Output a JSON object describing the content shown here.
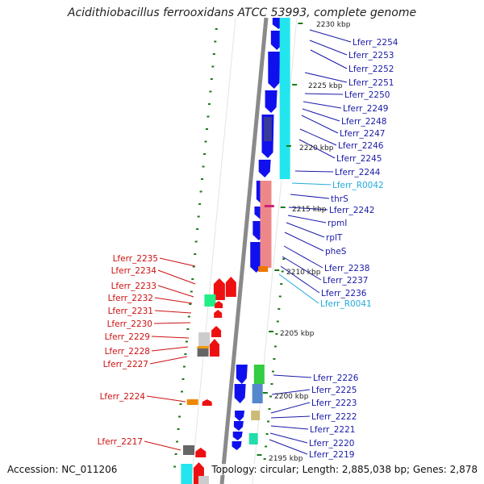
{
  "title": "Acidithiobacillus ferrooxidans ATCC 53993, complete genome",
  "footer": {
    "accession": "Accession: NC_011206",
    "summary": "Topology: circular; Length: 2,885,038 bp; Genes: 2,878"
  },
  "colors": {
    "cds_forward": "#1010ee",
    "cds_reverse": "#ee1010",
    "rna": "#22bbdd",
    "label_blue": "#1a1aa8",
    "label_red": "#cc1111",
    "label_cyan": "#22aadd",
    "backbone": "#888888",
    "tick": "#1a7a1a"
  },
  "scale": {
    "ticks": [
      {
        "label": "2225 kbp"
      },
      {
        "label": "2220 kbp"
      },
      {
        "label": "2215 kbp"
      },
      {
        "label": "2210 kbp"
      },
      {
        "label": "2205 kbp"
      },
      {
        "label": "2200 kbp"
      },
      {
        "label": "2195 kbp"
      },
      {
        "label": "2230 kbp"
      }
    ]
  },
  "genes_right": [
    {
      "name": "Lferr_2254",
      "kind": "cds"
    },
    {
      "name": "Lferr_2253",
      "kind": "cds"
    },
    {
      "name": "Lferr_2252",
      "kind": "cds"
    },
    {
      "name": "Lferr_2251",
      "kind": "cds"
    },
    {
      "name": "Lferr_2250",
      "kind": "cds"
    },
    {
      "name": "Lferr_2249",
      "kind": "cds"
    },
    {
      "name": "Lferr_2248",
      "kind": "cds"
    },
    {
      "name": "Lferr_2247",
      "kind": "cds"
    },
    {
      "name": "Lferr_2246",
      "kind": "cds"
    },
    {
      "name": "Lferr_2245",
      "kind": "cds"
    },
    {
      "name": "Lferr_2244",
      "kind": "cds"
    },
    {
      "name": "Lferr_R0042",
      "kind": "rna"
    },
    {
      "name": "thrS",
      "kind": "cds"
    },
    {
      "name": "Lferr_2242",
      "kind": "cds"
    },
    {
      "name": "rpmI",
      "kind": "cds"
    },
    {
      "name": "rplT",
      "kind": "cds"
    },
    {
      "name": "pheS",
      "kind": "cds"
    },
    {
      "name": "Lferr_2238",
      "kind": "cds"
    },
    {
      "name": "Lferr_2237",
      "kind": "cds"
    },
    {
      "name": "Lferr_2236",
      "kind": "cds"
    },
    {
      "name": "Lferr_R0041",
      "kind": "rna"
    },
    {
      "name": "Lferr_2226",
      "kind": "cds"
    },
    {
      "name": "Lferr_2225",
      "kind": "cds"
    },
    {
      "name": "Lferr_2223",
      "kind": "cds"
    },
    {
      "name": "Lferr_2222",
      "kind": "cds"
    },
    {
      "name": "Lferr_2221",
      "kind": "cds"
    },
    {
      "name": "Lferr_2220",
      "kind": "cds"
    },
    {
      "name": "Lferr_2219",
      "kind": "cds"
    }
  ],
  "genes_left": [
    {
      "name": "Lferr_2235"
    },
    {
      "name": "Lferr_2234"
    },
    {
      "name": "Lferr_2233"
    },
    {
      "name": "Lferr_2232"
    },
    {
      "name": "Lferr_2231"
    },
    {
      "name": "Lferr_2230"
    },
    {
      "name": "Lferr_2229"
    },
    {
      "name": "Lferr_2228"
    },
    {
      "name": "Lferr_2227"
    },
    {
      "name": "Lferr_2224"
    },
    {
      "name": "Lferr_2217"
    }
  ]
}
